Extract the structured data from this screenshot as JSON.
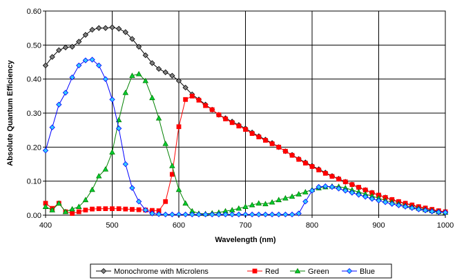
{
  "chart_data": {
    "type": "line",
    "title": "",
    "xlabel": "Wavelength (nm)",
    "ylabel": "Absolute Quantum Efficiency",
    "xlim": [
      400,
      1000
    ],
    "ylim": [
      0,
      0.6
    ],
    "x_ticks": [
      "400",
      "500",
      "600",
      "700",
      "800",
      "900",
      "1000"
    ],
    "y_ticks": [
      "0.00",
      "0.10",
      "0.20",
      "0.30",
      "0.40",
      "0.50",
      "0.60"
    ],
    "grid": true,
    "legend_position": "bottom",
    "series": [
      {
        "name": "Monochrome with Microlens",
        "color": "#000000",
        "marker_fill": "#808080",
        "marker": "diamond",
        "x": [
          400,
          410,
          420,
          430,
          440,
          450,
          460,
          470,
          480,
          490,
          500,
          510,
          520,
          530,
          540,
          550,
          560,
          570,
          580,
          590,
          600,
          610,
          620,
          630,
          640,
          650,
          660,
          670,
          680,
          690,
          700,
          710,
          720,
          730,
          740,
          750,
          760,
          770,
          780,
          790,
          800,
          810,
          820,
          830,
          840,
          850,
          860,
          870,
          880,
          890,
          900,
          910,
          920,
          930,
          940,
          950,
          960,
          970,
          980,
          990,
          1000
        ],
        "y": [
          0.44,
          0.465,
          0.485,
          0.493,
          0.495,
          0.51,
          0.53,
          0.545,
          0.55,
          0.55,
          0.552,
          0.548,
          0.538,
          0.518,
          0.495,
          0.47,
          0.447,
          0.43,
          0.42,
          0.41,
          0.395,
          0.375,
          0.355,
          0.34,
          0.325,
          0.31,
          0.295,
          0.285,
          0.275,
          0.265,
          0.255,
          0.243,
          0.232,
          0.222,
          0.212,
          0.2,
          0.188,
          0.177,
          0.165,
          0.155,
          0.145,
          0.135,
          0.125,
          0.115,
          0.107,
          0.098,
          0.09,
          0.081,
          0.074,
          0.066,
          0.059,
          0.052,
          0.045,
          0.039,
          0.034,
          0.029,
          0.024,
          0.02,
          0.016,
          0.012,
          0.01
        ]
      },
      {
        "name": "Red",
        "color": "#ff0000",
        "marker_fill": "#ff0000",
        "marker": "square",
        "x": [
          400,
          410,
          420,
          430,
          440,
          450,
          460,
          470,
          480,
          490,
          500,
          510,
          520,
          530,
          540,
          550,
          560,
          570,
          580,
          590,
          600,
          610,
          620,
          630,
          640,
          650,
          660,
          670,
          680,
          690,
          700,
          710,
          720,
          730,
          740,
          750,
          760,
          770,
          780,
          790,
          800,
          810,
          820,
          830,
          840,
          850,
          860,
          870,
          880,
          890,
          900,
          910,
          920,
          930,
          940,
          950,
          960,
          970,
          980,
          990,
          1000
        ],
        "y": [
          0.035,
          0.02,
          0.035,
          0.01,
          0.005,
          0.01,
          0.015,
          0.018,
          0.019,
          0.019,
          0.019,
          0.019,
          0.018,
          0.017,
          0.016,
          0.015,
          0.014,
          0.013,
          0.04,
          0.12,
          0.26,
          0.34,
          0.35,
          0.338,
          0.322,
          0.31,
          0.295,
          0.283,
          0.272,
          0.262,
          0.252,
          0.24,
          0.23,
          0.22,
          0.21,
          0.2,
          0.188,
          0.176,
          0.164,
          0.153,
          0.143,
          0.133,
          0.123,
          0.114,
          0.106,
          0.098,
          0.09,
          0.082,
          0.074,
          0.066,
          0.059,
          0.052,
          0.046,
          0.04,
          0.035,
          0.03,
          0.025,
          0.021,
          0.017,
          0.013,
          0.01
        ]
      },
      {
        "name": "Green",
        "color": "#008000",
        "marker_fill": "#00cc33",
        "marker": "triangle",
        "x": [
          400,
          410,
          420,
          430,
          440,
          450,
          460,
          470,
          480,
          490,
          500,
          510,
          520,
          530,
          540,
          550,
          560,
          570,
          580,
          590,
          600,
          610,
          620,
          630,
          640,
          650,
          660,
          670,
          680,
          690,
          700,
          710,
          720,
          730,
          740,
          750,
          760,
          770,
          780,
          790,
          800,
          810,
          820,
          830,
          840,
          850,
          860,
          870,
          880,
          890,
          900,
          910,
          920,
          930,
          940,
          950,
          960,
          970,
          980,
          990,
          1000
        ],
        "y": [
          0.025,
          0.015,
          0.035,
          0.01,
          0.018,
          0.025,
          0.045,
          0.075,
          0.115,
          0.135,
          0.185,
          0.28,
          0.36,
          0.41,
          0.415,
          0.395,
          0.345,
          0.285,
          0.21,
          0.145,
          0.075,
          0.035,
          0.012,
          0.005,
          0.004,
          0.006,
          0.008,
          0.012,
          0.015,
          0.02,
          0.025,
          0.03,
          0.035,
          0.033,
          0.038,
          0.045,
          0.05,
          0.055,
          0.062,
          0.068,
          0.075,
          0.08,
          0.083,
          0.085,
          0.084,
          0.08,
          0.074,
          0.068,
          0.062,
          0.056,
          0.05,
          0.043,
          0.038,
          0.033,
          0.028,
          0.024,
          0.02,
          0.016,
          0.013,
          0.01,
          0.008
        ]
      },
      {
        "name": "Blue",
        "color": "#0000ff",
        "marker_fill": "#33ccff",
        "marker": "diamond",
        "x": [
          400,
          410,
          420,
          430,
          440,
          450,
          460,
          470,
          480,
          490,
          500,
          510,
          520,
          530,
          540,
          550,
          560,
          570,
          580,
          590,
          600,
          610,
          620,
          630,
          640,
          650,
          660,
          670,
          680,
          690,
          700,
          710,
          720,
          730,
          740,
          750,
          760,
          770,
          780,
          790,
          800,
          810,
          820,
          830,
          840,
          850,
          860,
          870,
          880,
          890,
          900,
          910,
          920,
          930,
          940,
          950,
          960,
          970,
          980,
          990,
          1000
        ],
        "y": [
          0.19,
          0.258,
          0.325,
          0.36,
          0.405,
          0.44,
          0.455,
          0.457,
          0.44,
          0.4,
          0.34,
          0.255,
          0.15,
          0.08,
          0.04,
          0.015,
          0.005,
          0.003,
          0.002,
          0.002,
          0.002,
          0.002,
          0.002,
          0.002,
          0.002,
          0.002,
          0.002,
          0.002,
          0.002,
          0.002,
          0.002,
          0.002,
          0.002,
          0.002,
          0.002,
          0.002,
          0.002,
          0.002,
          0.005,
          0.04,
          0.072,
          0.083,
          0.085,
          0.083,
          0.078,
          0.072,
          0.066,
          0.06,
          0.054,
          0.048,
          0.043,
          0.038,
          0.033,
          0.029,
          0.025,
          0.021,
          0.017,
          0.014,
          0.011,
          0.009,
          0.008
        ]
      }
    ]
  }
}
